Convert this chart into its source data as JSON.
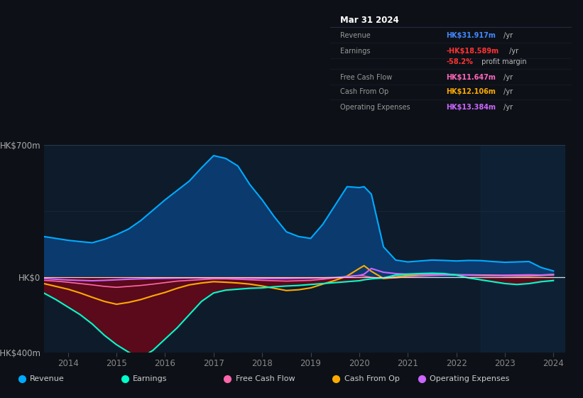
{
  "bg_color": "#0d1117",
  "chart_bg": "#0d1b2a",
  "right_panel_bg": "#0e2030",
  "years": [
    2013.5,
    2013.75,
    2014.0,
    2014.25,
    2014.5,
    2014.75,
    2015.0,
    2015.25,
    2015.5,
    2015.75,
    2016.0,
    2016.25,
    2016.5,
    2016.75,
    2017.0,
    2017.25,
    2017.5,
    2017.75,
    2018.0,
    2018.25,
    2018.5,
    2018.75,
    2019.0,
    2019.25,
    2019.5,
    2019.75,
    2020.0,
    2020.1,
    2020.25,
    2020.5,
    2020.75,
    2021.0,
    2021.25,
    2021.5,
    2021.75,
    2022.0,
    2022.25,
    2022.5,
    2022.75,
    2023.0,
    2023.25,
    2023.5,
    2023.75,
    2024.0
  ],
  "revenue": [
    215,
    205,
    195,
    188,
    182,
    200,
    225,
    255,
    300,
    355,
    410,
    460,
    510,
    580,
    645,
    630,
    590,
    490,
    410,
    320,
    240,
    215,
    205,
    280,
    380,
    480,
    475,
    480,
    440,
    160,
    90,
    80,
    85,
    90,
    88,
    85,
    88,
    87,
    82,
    78,
    80,
    82,
    50,
    32
  ],
  "earnings": [
    -85,
    -120,
    -160,
    -200,
    -250,
    -310,
    -360,
    -400,
    -430,
    -390,
    -330,
    -270,
    -200,
    -130,
    -85,
    -70,
    -65,
    -60,
    -58,
    -52,
    -48,
    -45,
    -40,
    -35,
    -30,
    -25,
    -20,
    -15,
    -10,
    -5,
    10,
    15,
    18,
    20,
    18,
    10,
    -5,
    -15,
    -25,
    -35,
    -40,
    -35,
    -25,
    -19
  ],
  "free_cash_flow": [
    -18,
    -22,
    -28,
    -35,
    -42,
    -50,
    -55,
    -50,
    -45,
    -38,
    -30,
    -22,
    -18,
    -14,
    -10,
    -10,
    -12,
    -15,
    -18,
    -20,
    -22,
    -20,
    -18,
    -12,
    -5,
    2,
    8,
    5,
    -2,
    -8,
    -5,
    2,
    5,
    8,
    10,
    10,
    12,
    11,
    10,
    10,
    11,
    12,
    11,
    12
  ],
  "cash_from_op": [
    -35,
    -50,
    -65,
    -85,
    -108,
    -130,
    -145,
    -135,
    -120,
    -100,
    -82,
    -60,
    -42,
    -32,
    -25,
    -28,
    -32,
    -38,
    -48,
    -60,
    -72,
    -68,
    -58,
    -38,
    -18,
    5,
    45,
    60,
    30,
    -8,
    0,
    8,
    12,
    15,
    14,
    12,
    10,
    10,
    8,
    6,
    5,
    5,
    8,
    12
  ],
  "operating_expenses": [
    -8,
    -12,
    -16,
    -18,
    -20,
    -18,
    -15,
    -12,
    -10,
    -8,
    -7,
    -6,
    -5,
    -5,
    -5,
    -5,
    -6,
    -7,
    -8,
    -8,
    -8,
    -7,
    -6,
    -5,
    -3,
    2,
    8,
    15,
    45,
    25,
    18,
    15,
    14,
    13,
    12,
    11,
    10,
    8,
    7,
    6,
    7,
    8,
    10,
    13
  ],
  "ylim": [
    -400,
    700
  ],
  "ytick_700": 700,
  "ytick_0": 0,
  "ytick_m400": -400,
  "xtick_labels": [
    "2014",
    "2015",
    "2016",
    "2017",
    "2018",
    "2019",
    "2020",
    "2021",
    "2022",
    "2023",
    "2024"
  ],
  "xtick_positions": [
    2014,
    2015,
    2016,
    2017,
    2018,
    2019,
    2020,
    2021,
    2022,
    2023,
    2024
  ],
  "revenue_color": "#00aaff",
  "earnings_color": "#00ffcc",
  "fcf_color": "#ff66aa",
  "cashop_color": "#ffaa00",
  "opex_color": "#cc66ff",
  "revenue_fill_color": "#0a3a6e",
  "earnings_fill_color": "#5a0a1a",
  "title_text": "Mar 31 2024",
  "info_rows": [
    {
      "label": "Revenue",
      "value": "HK$31.917m",
      "suffix": " /yr",
      "value_color": "#4488ff"
    },
    {
      "label": "Earnings",
      "value": "-HK$18.589m",
      "suffix": " /yr",
      "value_color": "#ff3333"
    },
    {
      "label": "",
      "value": "-58.2%",
      "suffix": " profit margin",
      "value_color": "#ff3333"
    },
    {
      "label": "Free Cash Flow",
      "value": "HK$11.647m",
      "suffix": " /yr",
      "value_color": "#ff66bb"
    },
    {
      "label": "Cash From Op",
      "value": "HK$12.106m",
      "suffix": " /yr",
      "value_color": "#ffaa00"
    },
    {
      "label": "Operating Expenses",
      "value": "HK$13.384m",
      "suffix": " /yr",
      "value_color": "#cc66ff"
    }
  ],
  "legend_items": [
    {
      "label": "Revenue",
      "color": "#00aaff"
    },
    {
      "label": "Earnings",
      "color": "#00ffcc"
    },
    {
      "label": "Free Cash Flow",
      "color": "#ff66aa"
    },
    {
      "label": "Cash From Op",
      "color": "#ffaa00"
    },
    {
      "label": "Operating Expenses",
      "color": "#cc66ff"
    }
  ]
}
